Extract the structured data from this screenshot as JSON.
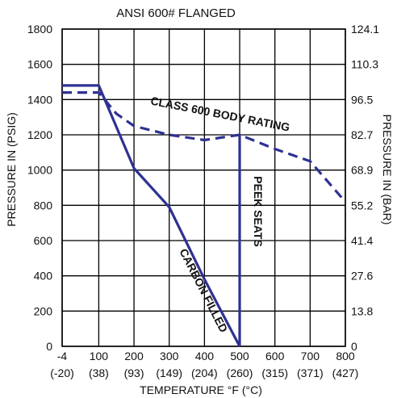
{
  "chart_data": {
    "type": "line",
    "title": "ANSI 600# FLANGED",
    "xlabel": "TEMPERATURE °F (°C)",
    "ylabel": "PRESSURE IN (PSIG)",
    "ylabel_right": "PRESSURE IN (BAR)",
    "xlim": [
      -4,
      800
    ],
    "ylim": [
      0,
      1800
    ],
    "x_ticks": [
      -4,
      100,
      200,
      300,
      400,
      500,
      600,
      700,
      800
    ],
    "x_tick_labels": [
      "-4",
      "100",
      "200",
      "300",
      "400",
      "500",
      "600",
      "700",
      "800"
    ],
    "x_tick_labels_celsius": [
      "(-20)",
      "(38)",
      "(93)",
      "(149)",
      "(204)",
      "(260)",
      "(315)",
      "(371)",
      "(427)"
    ],
    "y_ticks": [
      0,
      200,
      400,
      600,
      800,
      1000,
      1200,
      1400,
      1600,
      1800
    ],
    "y_tick_labels": [
      "0",
      "200",
      "400",
      "600",
      "800",
      "1000",
      "1200",
      "1400",
      "1600",
      "1800"
    ],
    "y_ticks_right_labels": [
      "0",
      "13.8",
      "27.6",
      "41.4",
      "55.2",
      "68.9",
      "82.7",
      "96.5",
      "110.3",
      "124.1"
    ],
    "grid": true,
    "colors": {
      "series": "#2e3192",
      "grid": "#000000"
    },
    "series": [
      {
        "name": "CLASS 600 BODY RATING",
        "style": "dashed",
        "x": [
          -4,
          100,
          150,
          200,
          300,
          400,
          500,
          600,
          700,
          800
        ],
        "y": [
          1440,
          1440,
          1320,
          1250,
          1200,
          1170,
          1200,
          1120,
          1050,
          820
        ]
      },
      {
        "name": "CARBON FILLED",
        "style": "solid",
        "x": [
          -4,
          100,
          200,
          300,
          400,
          500
        ],
        "y": [
          1480,
          1480,
          1010,
          790,
          380,
          0
        ]
      },
      {
        "name": "PEEK SEATS",
        "style": "solid",
        "x": [
          500,
          500
        ],
        "y": [
          1200,
          0
        ]
      }
    ],
    "annotations": [
      {
        "text": "CLASS 600 BODY RATING",
        "series": 0
      },
      {
        "text": "CARBON FILLED",
        "series": 1
      },
      {
        "text": "PEEK SEATS",
        "series": 2
      }
    ]
  }
}
